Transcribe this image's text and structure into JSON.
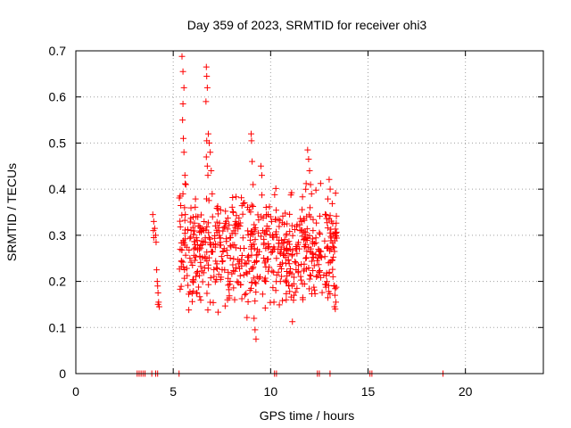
{
  "chart_data": {
    "type": "scatter",
    "title": "Day 359 of 2023, SRMTID for receiver ohi3",
    "xlabel": "GPS time / hours",
    "ylabel": "SRMTID / TECUs",
    "xlim": [
      0,
      24
    ],
    "ylim": [
      0,
      0.7
    ],
    "xticks": [
      0,
      5,
      10,
      15,
      20
    ],
    "xtick_labels": [
      "0",
      "5",
      "10",
      "15",
      "20"
    ],
    "yticks": [
      0,
      0.1,
      0.2,
      0.3,
      0.4,
      0.5,
      0.6,
      0.7
    ],
    "ytick_labels": [
      "0",
      "0.1",
      "0.2",
      "0.3",
      "0.4",
      "0.5",
      "0.6",
      "0.7"
    ],
    "grid": true,
    "marker": "+",
    "color": "#ff0000",
    "series": [
      {
        "name": "SRMTID",
        "x": [
          3.15,
          3.25,
          3.35,
          3.45,
          3.55,
          3.9,
          4.1,
          4.2,
          5.3,
          10.2,
          10.3,
          12.4,
          12.5,
          13.05,
          15.1,
          15.2,
          18.85,
          3.95,
          4.0,
          4.05,
          4.1,
          4.0,
          3.98,
          4.12,
          4.15,
          4.18,
          4.2,
          4.22,
          4.25,
          4.22,
          4.28,
          5.45,
          5.5,
          5.55,
          5.5,
          5.48,
          5.52,
          5.55,
          5.6,
          5.65,
          5.5,
          5.58,
          5.62,
          6.7,
          6.72,
          6.75,
          6.68,
          6.8,
          6.72,
          6.7,
          6.75,
          6.78,
          6.85,
          6.9,
          6.95,
          7.0,
          9.0,
          9.02,
          9.05,
          9.1,
          9.15,
          9.2,
          9.25,
          11.9,
          11.95,
          12.0,
          12.05,
          12.1,
          12.02,
          12.05,
          13.0,
          13.05,
          13.1,
          13.15,
          13.2,
          13.25,
          13.3,
          13.35,
          13.28,
          13.32,
          9.5,
          9.55,
          9.6,
          9.65,
          9.7,
          9.75,
          10.0,
          10.05,
          10.1,
          10.2,
          10.3,
          10.4,
          10.5,
          10.6,
          10.7,
          10.8,
          10.9,
          11.0,
          11.1,
          11.2,
          11.3,
          11.4,
          11.5,
          11.6,
          11.7,
          11.8
        ],
        "y": [
          0,
          0,
          0,
          0,
          0,
          0,
          0,
          0,
          0,
          0,
          0,
          0,
          0,
          0,
          0,
          0,
          0,
          0.345,
          0.33,
          0.315,
          0.3,
          0.295,
          0.31,
          0.285,
          0.225,
          0.2,
          0.19,
          0.175,
          0.155,
          0.15,
          0.145,
          0.688,
          0.655,
          0.62,
          0.585,
          0.55,
          0.51,
          0.48,
          0.43,
          0.41,
          0.39,
          0.36,
          0.345,
          0.665,
          0.645,
          0.62,
          0.59,
          0.52,
          0.505,
          0.47,
          0.45,
          0.43,
          0.5,
          0.48,
          0.44,
          0.39,
          0.52,
          0.505,
          0.46,
          0.41,
          0.12,
          0.095,
          0.075,
          0.485,
          0.465,
          0.44,
          0.41,
          0.39,
          0.36,
          0.34,
          0.335,
          0.305,
          0.27,
          0.245,
          0.21,
          0.19,
          0.17,
          0.155,
          0.145,
          0.14,
          0.45,
          0.43,
          0.31,
          0.28,
          0.24,
          0.2,
          0.34,
          0.33,
          0.3,
          0.27,
          0.25,
          0.22,
          0.2,
          0.24,
          0.27,
          0.3,
          0.26,
          0.22,
          0.19,
          0.17,
          0.24,
          0.28,
          0.31,
          0.33,
          0.29,
          0.25
        ]
      }
    ],
    "dense_bands": [
      {
        "x0": 5.3,
        "x1": 13.4,
        "ymin": 0.09,
        "ymax": 0.45,
        "count": 620
      }
    ]
  }
}
